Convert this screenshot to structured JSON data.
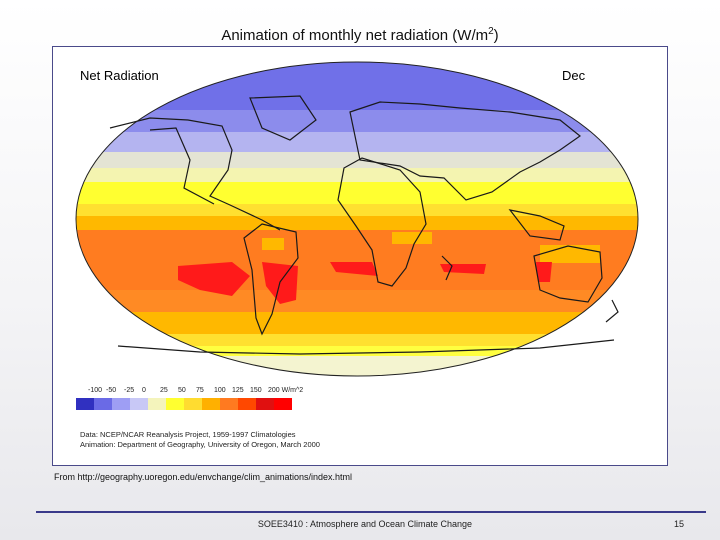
{
  "slide": {
    "title": "Animation of monthly net radiation (W/m",
    "title_superscript": "2",
    "title_close": ")",
    "source": "From http://geography.uoregon.edu/envchange/clim_animations/index.html",
    "footer_course": "SOEE3410 : Atmosphere and Ocean Climate Change",
    "page_number": "15"
  },
  "map": {
    "heading": "Net Radiation",
    "month": "Dec",
    "colorbar": {
      "tick_labels": [
        "-100",
        "-50",
        "-25",
        "0",
        "25",
        "50",
        "75",
        "100",
        "125",
        "150",
        "200 W/m^2"
      ],
      "colors": [
        "#3030c0",
        "#6a6ae6",
        "#9e9ef4",
        "#c8c8f6",
        "#f4f4bc",
        "#ffff30",
        "#ffdc30",
        "#ffb000",
        "#ff7a20",
        "#ff4800",
        "#e01010",
        "#ff0000"
      ]
    },
    "credits": [
      "Data:  NCEP/NCAR Reanalysis Project, 1959-1997 Climatologies",
      "Animation:  Department of Geography, University of Oregon, March 2000"
    ]
  }
}
